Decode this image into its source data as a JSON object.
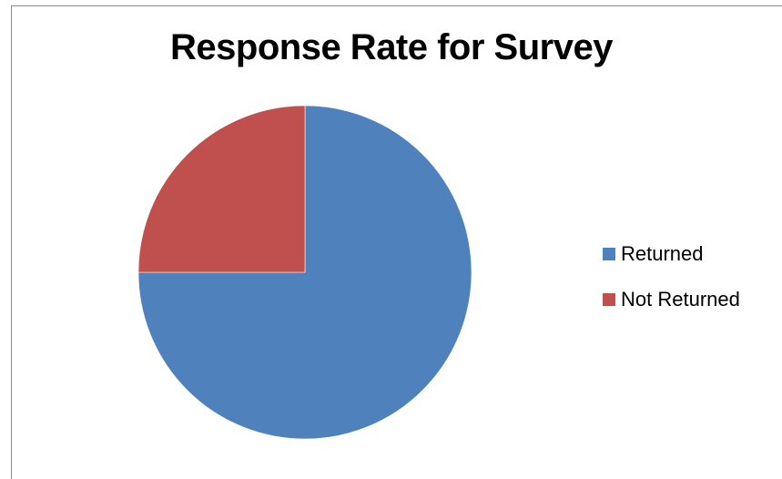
{
  "chart_data": {
    "type": "pie",
    "title": "Response Rate for Survey",
    "categories": [
      "Returned",
      "Not Returned"
    ],
    "values": [
      75,
      25
    ],
    "colors": [
      "#4f81bd",
      "#c0504d"
    ],
    "start_angle_deg": 0,
    "legend_position": "right"
  }
}
